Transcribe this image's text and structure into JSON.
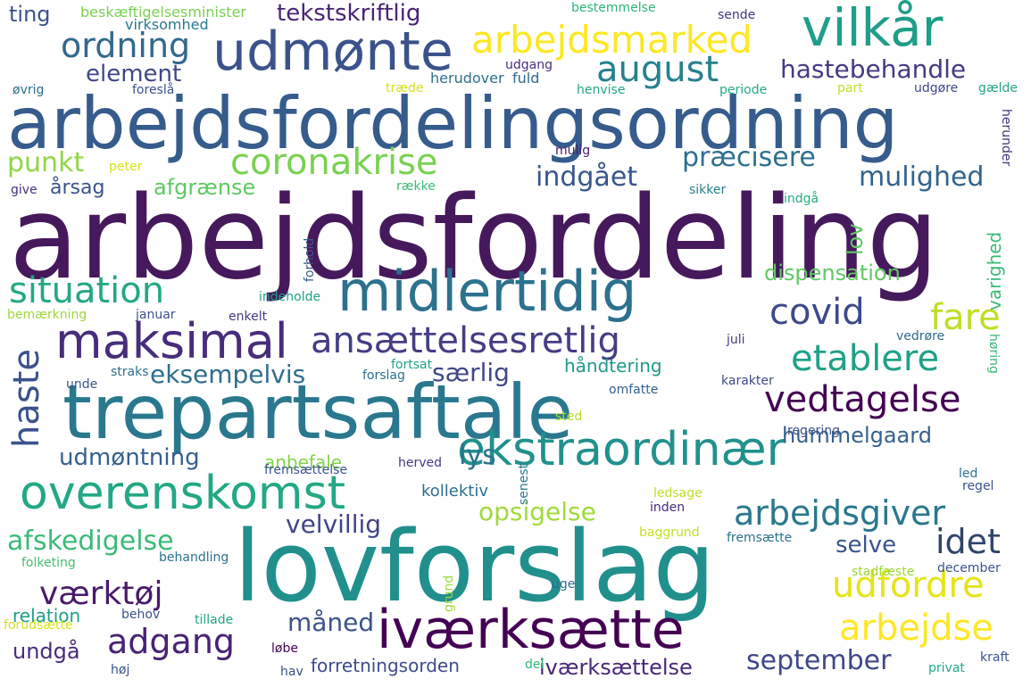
{
  "words": [
    {
      "text": "arbejdsfordeling",
      "color": "#46195c"
    },
    {
      "text": "lovforslag",
      "color": "#21908d"
    },
    {
      "text": "arbejdsfordelingsordning",
      "color": "#365c8d"
    },
    {
      "text": "trepartsaftale",
      "color": "#2a788e"
    },
    {
      "text": "midlertidig",
      "color": "#2c718e"
    },
    {
      "text": "udmønte",
      "color": "#3b528b"
    },
    {
      "text": "vilkår",
      "color": "#1f9e89"
    },
    {
      "text": "maksimal",
      "color": "#472d7b"
    },
    {
      "text": "ekstraordinær",
      "color": "#21918c"
    },
    {
      "text": "iværksætte",
      "color": "#440154"
    },
    {
      "text": "overenskomst",
      "color": "#22a884"
    },
    {
      "text": "ansættelsesretlig",
      "color": "#433e85"
    },
    {
      "text": "vedtagelse",
      "color": "#440154"
    },
    {
      "text": "arbejdsmarked",
      "color": "#fde725"
    },
    {
      "text": "ordning",
      "color": "#31688e"
    },
    {
      "text": "august",
      "color": "#26828e"
    },
    {
      "text": "coronakrise",
      "color": "#7ad151"
    },
    {
      "text": "situation",
      "color": "#23a884"
    },
    {
      "text": "haste",
      "color": "#3b528b"
    },
    {
      "text": "covid",
      "color": "#3e4a89"
    },
    {
      "text": "fare",
      "color": "#bddf26"
    },
    {
      "text": "etablere",
      "color": "#1fa187"
    },
    {
      "text": "arbejdsgiver",
      "color": "#2a788e"
    },
    {
      "text": "udfordre",
      "color": "#e5e419"
    },
    {
      "text": "arbejdse",
      "color": "#fde725"
    },
    {
      "text": "idet",
      "color": "#31446b"
    },
    {
      "text": "adgang",
      "color": "#482374"
    },
    {
      "text": "værktøj",
      "color": "#481a6c"
    },
    {
      "text": "hastebehandle",
      "color": "#443a83"
    },
    {
      "text": "element",
      "color": "#404688"
    },
    {
      "text": "punkt",
      "color": "#8fd744"
    },
    {
      "text": "præcisere",
      "color": "#2e6f8e"
    },
    {
      "text": "indgået",
      "color": "#39568c"
    },
    {
      "text": "mulighed",
      "color": "#33638d"
    },
    {
      "text": "opsigelse",
      "color": "#a0da39"
    },
    {
      "text": "afskedigelse",
      "color": "#3bbb75"
    },
    {
      "text": "velvillig",
      "color": "#414487"
    },
    {
      "text": "selve",
      "color": "#3a548c"
    },
    {
      "text": "september",
      "color": "#3f4889"
    },
    {
      "text": "måned",
      "color": "#3b528b"
    },
    {
      "text": "lys",
      "color": "#2c718e"
    },
    {
      "text": "særlig",
      "color": "#3f4788"
    },
    {
      "text": "eksempelvis",
      "color": "#2e6e8e"
    },
    {
      "text": "udmøntning",
      "color": "#34608d"
    },
    {
      "text": "hummelgaard",
      "color": "#35608d"
    },
    {
      "text": "dispensation",
      "color": "#5ec962"
    },
    {
      "text": "tekstskriftlig",
      "color": "#482475"
    },
    {
      "text": "afgrænse",
      "color": "#5ec962"
    },
    {
      "text": "håndtering",
      "color": "#1f9a8a"
    },
    {
      "text": "relation",
      "color": "#1f9e89"
    },
    {
      "text": "undgå",
      "color": "#472c7a"
    },
    {
      "text": "iværksættelse",
      "color": "#482878"
    },
    {
      "text": "forretningsorden",
      "color": "#3e4c8a"
    },
    {
      "text": "ting",
      "color": "#3b528b"
    },
    {
      "text": "lov",
      "color": "#5ec962"
    },
    {
      "text": "varighed",
      "color": "#3aba76"
    },
    {
      "text": "kollektiv",
      "color": "#2e6f8e"
    },
    {
      "text": "anbefale",
      "color": "#84d44b"
    },
    {
      "text": "årsag",
      "color": "#3b528b"
    },
    {
      "text": "beskæftigelsesminister",
      "color": "#7ad151"
    },
    {
      "text": "virksomhed",
      "color": "#2a788e"
    },
    {
      "text": "bestemmelse",
      "color": "#2fb47c"
    },
    {
      "text": "sende",
      "color": "#46337e"
    },
    {
      "text": "udgang",
      "color": "#472f7d"
    },
    {
      "text": "herudover",
      "color": "#2c718e"
    },
    {
      "text": "fuld",
      "color": "#31688e"
    },
    {
      "text": "henvise",
      "color": "#22a884"
    },
    {
      "text": "periode",
      "color": "#25ab82"
    },
    {
      "text": "part",
      "color": "#c2df23"
    },
    {
      "text": "udgøre",
      "color": "#404688"
    },
    {
      "text": "gælde",
      "color": "#22a785"
    },
    {
      "text": "øvrig",
      "color": "#2e6e8e"
    },
    {
      "text": "foreslå",
      "color": "#3b528b"
    },
    {
      "text": "træde",
      "color": "#d8e219"
    },
    {
      "text": "mulig",
      "color": "#481a6c"
    },
    {
      "text": "herunder",
      "color": "#46327e"
    },
    {
      "text": "peter",
      "color": "#d5e21a"
    },
    {
      "text": "give",
      "color": "#46307e"
    },
    {
      "text": "række",
      "color": "#3aba76"
    },
    {
      "text": "sikker",
      "color": "#277f8e"
    },
    {
      "text": "indgå",
      "color": "#25ab82"
    },
    {
      "text": "forhold",
      "color": "#38598c"
    },
    {
      "text": "indeholde",
      "color": "#1fa187"
    },
    {
      "text": "bemærkning",
      "color": "#9dd93b"
    },
    {
      "text": "januar",
      "color": "#3b528b"
    },
    {
      "text": "enkelt",
      "color": "#443983"
    },
    {
      "text": "juli",
      "color": "#433e85"
    },
    {
      "text": "vedrøre",
      "color": "#2f6c8e"
    },
    {
      "text": "høring",
      "color": "#3aba76"
    },
    {
      "text": "straks",
      "color": "#2e6f8e"
    },
    {
      "text": "fortsat",
      "color": "#20a386"
    },
    {
      "text": "forslag",
      "color": "#2e6f8e"
    },
    {
      "text": "unde",
      "color": "#3b528b"
    },
    {
      "text": "omfatte",
      "color": "#34608d"
    },
    {
      "text": "karakter",
      "color": "#3e4989"
    },
    {
      "text": "sted",
      "color": "#b5de2b"
    },
    {
      "text": "senest",
      "color": "#2a788e"
    },
    {
      "text": "regering",
      "color": "#3c508b"
    },
    {
      "text": "herved",
      "color": "#443a83"
    },
    {
      "text": "fremsættelse",
      "color": "#3b528b"
    },
    {
      "text": "led",
      "color": "#2c718e"
    },
    {
      "text": "regel",
      "color": "#3b528b"
    },
    {
      "text": "ledsage",
      "color": "#bade28"
    },
    {
      "text": "inden",
      "color": "#472c7a"
    },
    {
      "text": "baggrund",
      "color": "#c2df23"
    },
    {
      "text": "folketing",
      "color": "#44bf70"
    },
    {
      "text": "behandling",
      "color": "#2c718e"
    },
    {
      "text": "fremsætte",
      "color": "#2c718e"
    },
    {
      "text": "stadfæste",
      "color": "#9dd93b"
    },
    {
      "text": "december",
      "color": "#3b528b"
    },
    {
      "text": "grund",
      "color": "#9dd93b"
    },
    {
      "text": "uge",
      "color": "#31688e"
    },
    {
      "text": "behov",
      "color": "#3b528b"
    },
    {
      "text": "tillade",
      "color": "#22a884"
    },
    {
      "text": "forudsætte",
      "color": "#d5e21a"
    },
    {
      "text": "løbe",
      "color": "#440154"
    },
    {
      "text": "høj",
      "color": "#3b528b"
    },
    {
      "text": "hav",
      "color": "#3b528b"
    },
    {
      "text": "del",
      "color": "#2fb47c"
    },
    {
      "text": "privat",
      "color": "#22a884"
    },
    {
      "text": "kraft",
      "color": "#3b528b"
    }
  ]
}
